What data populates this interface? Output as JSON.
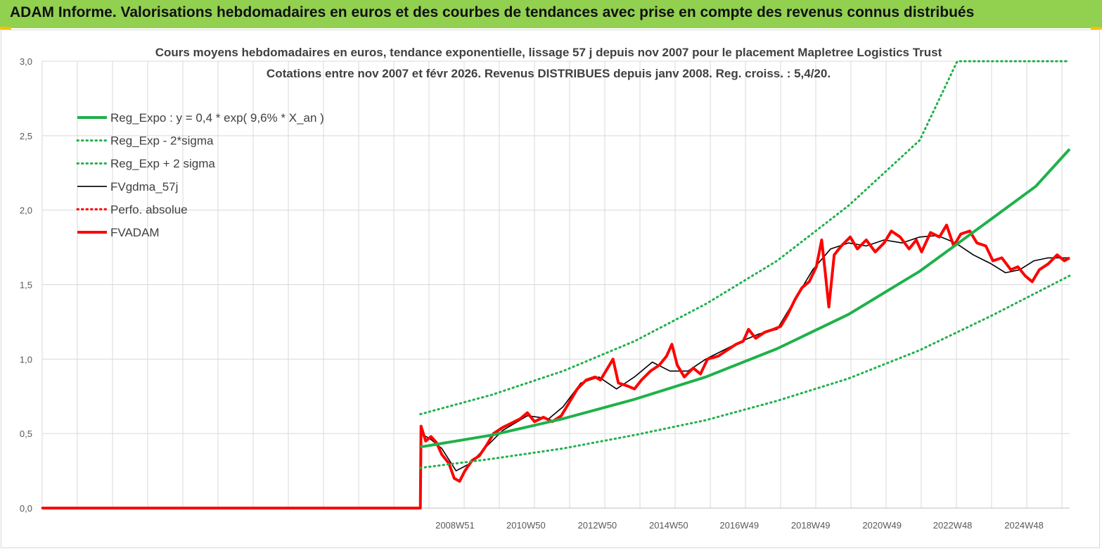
{
  "header": {
    "title": "ADAM Informe. Valorisations hebdomadaires en euros et des courbes de tendances avec prise en compte des revenus connus distribués"
  },
  "colors": {
    "banner": "#92d050",
    "reg": "#1fb14a",
    "fv_smooth": "#000000",
    "fv_adam": "#ff0000",
    "grid": "#d9d9d9"
  },
  "chart_data": {
    "type": "line",
    "title": "Cours moyens hebdomadaires en euros, tendance exponentielle, lissage 57 j depuis nov 2007 pour le placement Mapletree Logistics Trust",
    "subtitle": "Cotations entre nov 2007 et févr 2026. Revenus DISTRIBUES depuis janv 2008. Reg. croiss. : 5,4/20.",
    "xlabel": "",
    "ylabel": "",
    "ylim": [
      0,
      3
    ],
    "xlim": [
      1997.4,
      2026.2
    ],
    "grid": true,
    "legend_position": "top-left",
    "y_ticks": [
      "0,0",
      "0,5",
      "1,0",
      "1,5",
      "2,0",
      "2,5",
      "3,0"
    ],
    "x_ticks": [
      {
        "label": "2008W51",
        "x": 2008.97
      },
      {
        "label": "2010W50",
        "x": 2010.96
      },
      {
        "label": "2012W50",
        "x": 2012.96
      },
      {
        "label": "2014W50",
        "x": 2014.96
      },
      {
        "label": "2016W49",
        "x": 2016.94
      },
      {
        "label": "2018W49",
        "x": 2018.94
      },
      {
        "label": "2020W49",
        "x": 2020.94
      },
      {
        "label": "2022W48",
        "x": 2022.92
      },
      {
        "label": "2024W48",
        "x": 2024.92
      }
    ],
    "series": [
      {
        "name": "Reg_Expo : y = 0,4 * exp( 9,6% *  X_an )",
        "style": "solid-thick",
        "color": "#1fb14a",
        "points": [
          [
            2008.0,
            0.41
          ],
          [
            2010.0,
            0.49
          ],
          [
            2012.0,
            0.6
          ],
          [
            2014.0,
            0.73
          ],
          [
            2016.0,
            0.88
          ],
          [
            2018.0,
            1.07
          ],
          [
            2020.0,
            1.3
          ],
          [
            2022.0,
            1.59
          ],
          [
            2024.0,
            1.94
          ],
          [
            2025.25,
            2.16
          ],
          [
            2026.2,
            2.41
          ]
        ]
      },
      {
        "name": "Reg_Exp - 2*sigma",
        "style": "dotted",
        "color": "#1fb14a",
        "points": [
          [
            2008.0,
            0.27
          ],
          [
            2010.0,
            0.33
          ],
          [
            2012.0,
            0.4
          ],
          [
            2014.0,
            0.49
          ],
          [
            2016.0,
            0.59
          ],
          [
            2018.0,
            0.72
          ],
          [
            2020.0,
            0.87
          ],
          [
            2022.0,
            1.06
          ],
          [
            2024.0,
            1.29
          ],
          [
            2026.2,
            1.56
          ]
        ]
      },
      {
        "name": "Reg_Exp + 2 sigma",
        "style": "dotted",
        "color": "#1fb14a",
        "points": [
          [
            2008.0,
            0.63
          ],
          [
            2010.0,
            0.76
          ],
          [
            2012.0,
            0.92
          ],
          [
            2014.0,
            1.12
          ],
          [
            2016.0,
            1.37
          ],
          [
            2018.0,
            1.66
          ],
          [
            2020.0,
            2.03
          ],
          [
            2022.0,
            2.47
          ],
          [
            2023.05,
            3.0
          ],
          [
            2026.2,
            3.0
          ]
        ]
      },
      {
        "name": "FVgdma_57j",
        "style": "solid-thin",
        "color": "#000000",
        "points": [
          [
            1997.4,
            0
          ],
          [
            2008.0,
            0
          ],
          [
            2008.02,
            0.5
          ],
          [
            2008.3,
            0.46
          ],
          [
            2008.6,
            0.4
          ],
          [
            2009.0,
            0.25
          ],
          [
            2009.4,
            0.3
          ],
          [
            2009.8,
            0.4
          ],
          [
            2010.3,
            0.52
          ],
          [
            2011.0,
            0.62
          ],
          [
            2011.6,
            0.6
          ],
          [
            2012.0,
            0.68
          ],
          [
            2012.5,
            0.84
          ],
          [
            2013.0,
            0.88
          ],
          [
            2013.5,
            0.8
          ],
          [
            2014.0,
            0.88
          ],
          [
            2014.5,
            0.98
          ],
          [
            2015.0,
            0.92
          ],
          [
            2015.5,
            0.92
          ],
          [
            2016.0,
            1.0
          ],
          [
            2016.5,
            1.06
          ],
          [
            2017.0,
            1.12
          ],
          [
            2017.5,
            1.17
          ],
          [
            2018.0,
            1.2
          ],
          [
            2018.5,
            1.4
          ],
          [
            2019.0,
            1.6
          ],
          [
            2019.5,
            1.74
          ],
          [
            2020.0,
            1.78
          ],
          [
            2020.5,
            1.76
          ],
          [
            2021.0,
            1.8
          ],
          [
            2021.5,
            1.78
          ],
          [
            2022.0,
            1.82
          ],
          [
            2022.5,
            1.83
          ],
          [
            2023.0,
            1.78
          ],
          [
            2023.5,
            1.7
          ],
          [
            2024.0,
            1.64
          ],
          [
            2024.4,
            1.58
          ],
          [
            2024.8,
            1.6
          ],
          [
            2025.2,
            1.66
          ],
          [
            2025.6,
            1.68
          ],
          [
            2026.2,
            1.68
          ]
        ]
      },
      {
        "name": "Perfo. absolue",
        "style": "dotted",
        "color": "#ff0000",
        "points": [
          [
            1997.4,
            0
          ],
          [
            2008.0,
            0
          ]
        ]
      },
      {
        "name": "FVADAM",
        "style": "solid-thick",
        "color": "#ff0000",
        "points": [
          [
            1997.4,
            0
          ],
          [
            2008.0,
            0
          ],
          [
            2008.02,
            0.55
          ],
          [
            2008.15,
            0.45
          ],
          [
            2008.3,
            0.48
          ],
          [
            2008.45,
            0.44
          ],
          [
            2008.6,
            0.36
          ],
          [
            2008.8,
            0.3
          ],
          [
            2008.95,
            0.2
          ],
          [
            2009.1,
            0.18
          ],
          [
            2009.25,
            0.25
          ],
          [
            2009.45,
            0.32
          ],
          [
            2009.65,
            0.35
          ],
          [
            2009.85,
            0.42
          ],
          [
            2010.05,
            0.5
          ],
          [
            2010.3,
            0.54
          ],
          [
            2010.55,
            0.57
          ],
          [
            2010.8,
            0.6
          ],
          [
            2011.0,
            0.64
          ],
          [
            2011.2,
            0.58
          ],
          [
            2011.45,
            0.61
          ],
          [
            2011.7,
            0.58
          ],
          [
            2011.95,
            0.62
          ],
          [
            2012.15,
            0.7
          ],
          [
            2012.4,
            0.8
          ],
          [
            2012.65,
            0.86
          ],
          [
            2012.9,
            0.88
          ],
          [
            2013.05,
            0.86
          ],
          [
            2013.4,
            1.0
          ],
          [
            2013.55,
            0.84
          ],
          [
            2013.8,
            0.82
          ],
          [
            2014.0,
            0.8
          ],
          [
            2014.2,
            0.86
          ],
          [
            2014.45,
            0.92
          ],
          [
            2014.7,
            0.96
          ],
          [
            2014.9,
            1.02
          ],
          [
            2015.05,
            1.1
          ],
          [
            2015.2,
            0.96
          ],
          [
            2015.4,
            0.88
          ],
          [
            2015.65,
            0.94
          ],
          [
            2015.85,
            0.9
          ],
          [
            2016.05,
            1.0
          ],
          [
            2016.35,
            1.02
          ],
          [
            2016.6,
            1.06
          ],
          [
            2016.85,
            1.1
          ],
          [
            2017.05,
            1.12
          ],
          [
            2017.2,
            1.2
          ],
          [
            2017.4,
            1.14
          ],
          [
            2017.65,
            1.18
          ],
          [
            2017.9,
            1.2
          ],
          [
            2018.1,
            1.22
          ],
          [
            2018.3,
            1.3
          ],
          [
            2018.5,
            1.4
          ],
          [
            2018.7,
            1.48
          ],
          [
            2018.9,
            1.52
          ],
          [
            2019.1,
            1.62
          ],
          [
            2019.25,
            1.8
          ],
          [
            2019.35,
            1.58
          ],
          [
            2019.45,
            1.35
          ],
          [
            2019.6,
            1.7
          ],
          [
            2019.8,
            1.76
          ],
          [
            2020.05,
            1.82
          ],
          [
            2020.25,
            1.74
          ],
          [
            2020.5,
            1.8
          ],
          [
            2020.75,
            1.72
          ],
          [
            2021.0,
            1.78
          ],
          [
            2021.2,
            1.86
          ],
          [
            2021.45,
            1.82
          ],
          [
            2021.7,
            1.74
          ],
          [
            2021.9,
            1.8
          ],
          [
            2022.05,
            1.72
          ],
          [
            2022.3,
            1.85
          ],
          [
            2022.55,
            1.82
          ],
          [
            2022.75,
            1.9
          ],
          [
            2022.95,
            1.76
          ],
          [
            2023.15,
            1.84
          ],
          [
            2023.4,
            1.86
          ],
          [
            2023.6,
            1.78
          ],
          [
            2023.85,
            1.76
          ],
          [
            2024.05,
            1.66
          ],
          [
            2024.3,
            1.68
          ],
          [
            2024.55,
            1.6
          ],
          [
            2024.75,
            1.62
          ],
          [
            2024.95,
            1.56
          ],
          [
            2025.15,
            1.52
          ],
          [
            2025.35,
            1.6
          ],
          [
            2025.6,
            1.64
          ],
          [
            2025.85,
            1.7
          ],
          [
            2026.05,
            1.66
          ],
          [
            2026.2,
            1.68
          ]
        ]
      }
    ]
  }
}
